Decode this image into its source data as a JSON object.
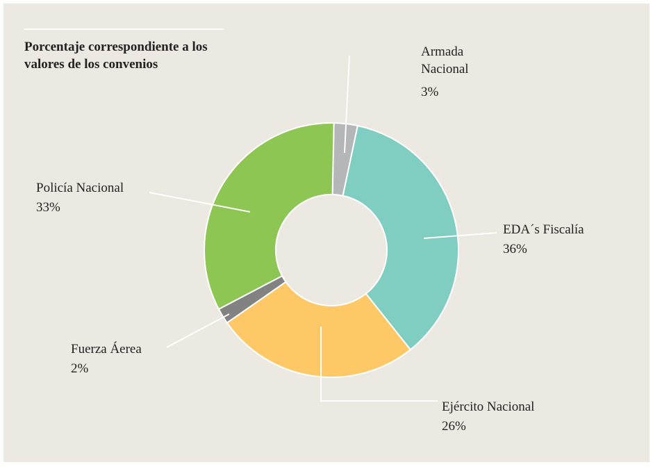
{
  "chart_data": {
    "type": "donut",
    "title": "Porcentaje correspondiente a los valores de los convenios",
    "categories": [
      "Armada Nacional",
      "EDA´s Fiscalía",
      "Ejército Nacional",
      "Fuerza Áerea",
      "Policía Nacional"
    ],
    "values": [
      3,
      36,
      26,
      2,
      33
    ],
    "value_labels": [
      "3%",
      "36%",
      "26%",
      "2%",
      "33%"
    ],
    "colors": [
      "#b4b6b8",
      "#80cdc2",
      "#fec867",
      "#828282",
      "#8dc653"
    ]
  }
}
